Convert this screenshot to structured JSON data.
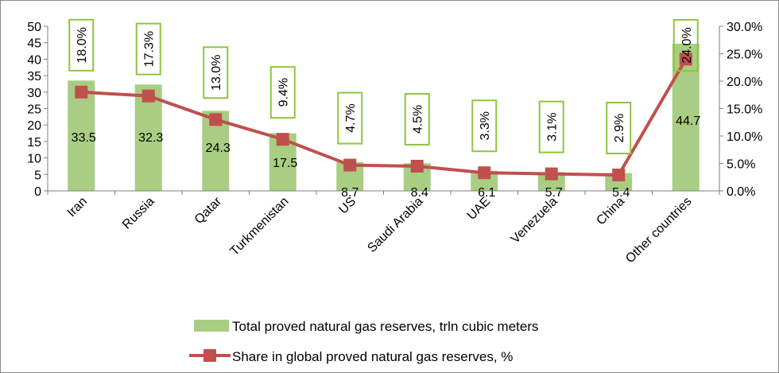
{
  "chart_data": {
    "type": "bar",
    "title": "",
    "xlabel": "",
    "ylabel": "",
    "categories": [
      "Iran",
      "Russia",
      "Qatar",
      "Turkmenistan",
      "US",
      "Saudi Arabia",
      "UAE",
      "Venezuela",
      "China",
      "Other countries"
    ],
    "series": [
      {
        "name": "Total proved natural gas reserves, trln cubic meters",
        "type": "bar",
        "axis": "left",
        "color": "#a9cd83",
        "values": [
          33.5,
          32.3,
          24.3,
          17.5,
          8.7,
          8.4,
          6.1,
          5.7,
          5.4,
          44.7
        ],
        "labels": [
          "33.5",
          "32.3",
          "24.3",
          "17.5",
          "8.7",
          "8.4",
          "6.1",
          "5.7",
          "5.4",
          "44.7"
        ]
      },
      {
        "name": "Share in global proved natural gas reserves, %",
        "type": "line",
        "axis": "right",
        "color": "#c0504d",
        "values": [
          18.0,
          17.3,
          13.0,
          9.4,
          4.7,
          4.5,
          3.3,
          3.1,
          2.9,
          24.0
        ],
        "labels": [
          "18.0%",
          "17.3%",
          "13.0%",
          "9.4%",
          "4.7%",
          "4.5%",
          "3.3%",
          "3.1%",
          "2.9%",
          "24.0%"
        ]
      }
    ],
    "y_left": {
      "min": 0,
      "max": 50,
      "ticks": [
        "0",
        "5",
        "10",
        "15",
        "20",
        "25",
        "30",
        "35",
        "40",
        "45",
        "50"
      ]
    },
    "y_right": {
      "min": 0,
      "max": 30,
      "ticks": [
        "0.0%",
        "5.0%",
        "10.0%",
        "15.0%",
        "20.0%",
        "25.0%",
        "30.0%"
      ]
    },
    "grid": false,
    "legend_position": "bottom",
    "label_box_color": "#8dc63f"
  }
}
